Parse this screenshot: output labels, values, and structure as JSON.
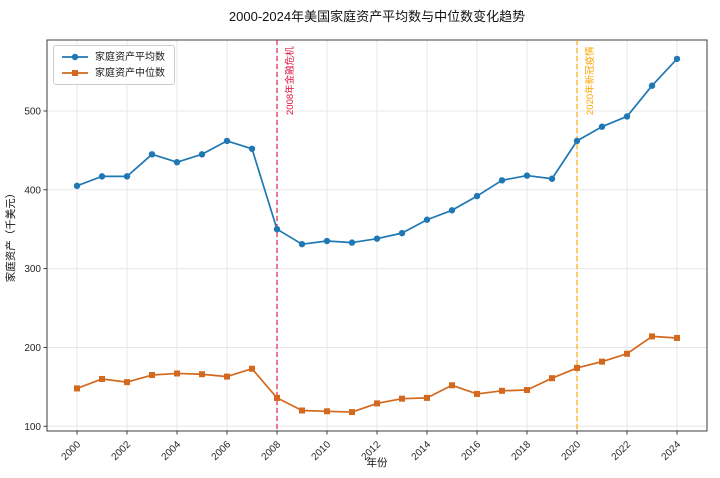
{
  "colors": {
    "grid": "#e7e7e7",
    "spine": "#3c3c3c",
    "tick_label": "#262626",
    "background": "#ffffff"
  },
  "chart_data": {
    "type": "line",
    "title": "2000-2024年美国家庭资产平均数与中位数变化趋势",
    "xlabel": "年份",
    "ylabel": "家庭资产（千美元）",
    "grid": true,
    "legend_position": "upper-left",
    "x": [
      2000,
      2001,
      2002,
      2003,
      2004,
      2005,
      2006,
      2007,
      2008,
      2009,
      2010,
      2011,
      2012,
      2013,
      2014,
      2015,
      2016,
      2017,
      2018,
      2019,
      2020,
      2021,
      2022,
      2023,
      2024
    ],
    "series": [
      {
        "id": "mean",
        "name": "家庭资产平均数",
        "color": "#1f77b4",
        "marker": "circle",
        "values": [
          405,
          417,
          417,
          445,
          435,
          445,
          462,
          452,
          350,
          331,
          335,
          333,
          338,
          345,
          362,
          374,
          392,
          412,
          418,
          414,
          462,
          480,
          493,
          532,
          566
        ]
      },
      {
        "id": "median",
        "name": "家庭资产中位数",
        "color": "#d2691e",
        "marker": "square",
        "values": [
          148,
          160,
          156,
          165,
          167,
          166,
          163,
          173,
          136,
          120,
          119,
          118,
          129,
          135,
          136,
          152,
          141,
          145,
          146,
          161,
          174,
          182,
          192,
          214,
          212
        ]
      }
    ],
    "annotations": [
      {
        "id": "financial-crisis",
        "x": 2008,
        "label": "2008年金融危机",
        "color": "#dc143c"
      },
      {
        "id": "covid-pandemic",
        "x": 2020,
        "label": "2020年新冠疫情",
        "color": "#ffa500"
      }
    ],
    "xticks": [
      2000,
      2002,
      2004,
      2006,
      2008,
      2010,
      2012,
      2014,
      2016,
      2018,
      2020,
      2022,
      2024
    ],
    "yticks": [
      100,
      200,
      300,
      400,
      500
    ],
    "xlim": [
      1998.8,
      2025.2
    ],
    "ylim": [
      94,
      590
    ]
  }
}
